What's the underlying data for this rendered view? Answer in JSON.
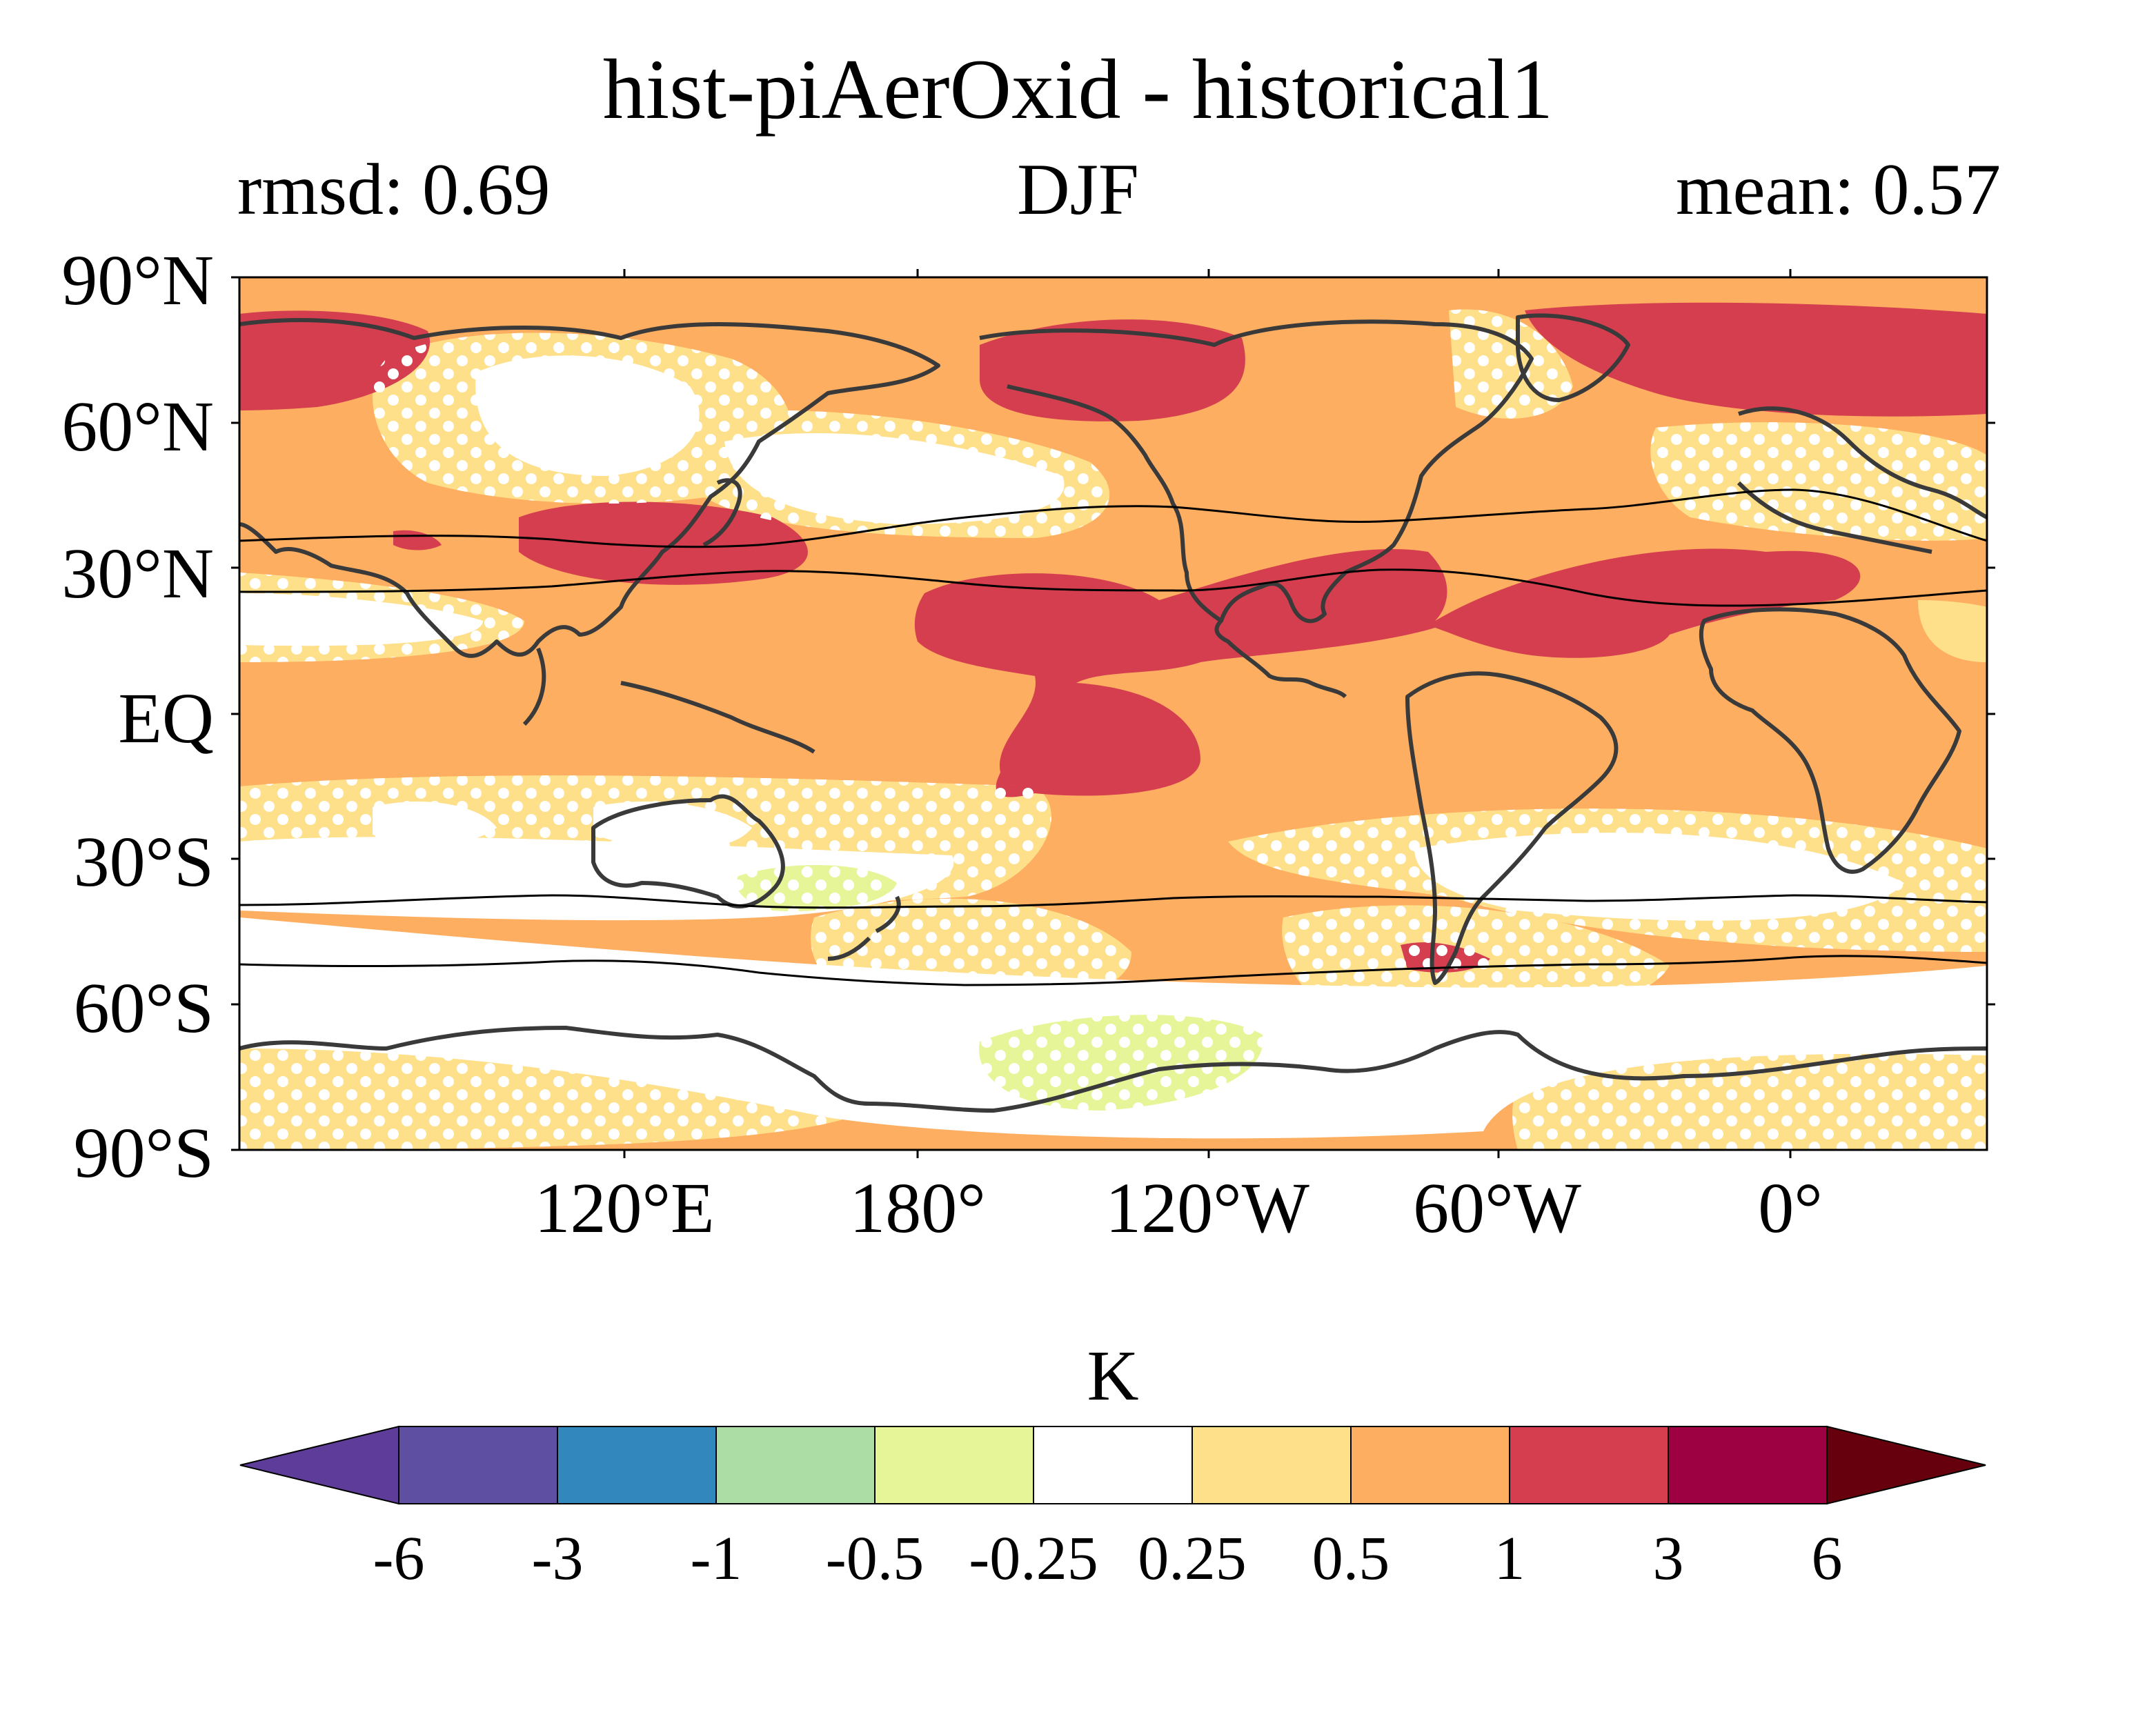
{
  "title": "hist-piAerOxid - historical1",
  "subtitle": {
    "left": "rmsd: 0.69",
    "center": "DJF",
    "right": "mean: 0.57"
  },
  "lat_labels": [
    "90°N",
    "60°N",
    "30°N",
    "EQ",
    "30°S",
    "60°S",
    "90°S"
  ],
  "lon_labels": [
    "120°E",
    "180°",
    "120°W",
    "60°W",
    "0°"
  ],
  "colorbar": {
    "unit": "K",
    "ticks": [
      "-6",
      "-3",
      "-1",
      "-0.5",
      "-0.25",
      "0.25",
      "0.5",
      "1",
      "3",
      "6"
    ],
    "colors": [
      "#5e3c99",
      "#5e4fa2",
      "#3288bd",
      "#abdda4",
      "#e6f598",
      "#ffffff",
      "#fee08b",
      "#fdae61",
      "#d53e4f",
      "#9e0142",
      "#67000d"
    ]
  },
  "colors": {
    "land_outline": "#3a3a3a",
    "stipple": "#ffffff",
    "jet_lines": "#000000"
  }
}
